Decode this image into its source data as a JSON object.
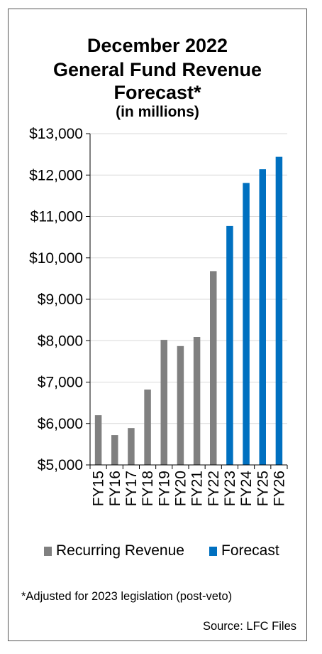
{
  "chart_data": {
    "type": "bar",
    "title": [
      "December 2022",
      "General Fund Revenue",
      "Forecast*"
    ],
    "subtitle": "(in millions)",
    "categories": [
      "FY15",
      "FY16",
      "FY17",
      "FY18",
      "FY19",
      "FY20",
      "FY21",
      "FY22",
      "FY23",
      "FY24",
      "FY25",
      "FY26"
    ],
    "series": [
      {
        "name": "Recurring Revenue",
        "color": "#808080",
        "values": [
          6200,
          5720,
          5890,
          6820,
          8020,
          7870,
          8090,
          9680,
          null,
          null,
          null,
          null
        ]
      },
      {
        "name": "Forecast",
        "color": "#0070c0",
        "values": [
          null,
          null,
          null,
          null,
          null,
          null,
          null,
          null,
          10770,
          11810,
          12140,
          12440
        ]
      }
    ],
    "ylim": [
      5000,
      13000
    ],
    "yticks": [
      5000,
      6000,
      7000,
      8000,
      9000,
      10000,
      11000,
      12000,
      13000
    ],
    "ytick_labels": [
      "$5,000",
      "$6,000",
      "$7,000",
      "$8,000",
      "$9,000",
      "$10,000",
      "$11,000",
      "$12,000",
      "$13,000"
    ],
    "grid": true,
    "legend_position": "bottom"
  },
  "footnote": "*Adjusted for 2023 legislation (post-veto)",
  "source": "Source: LFC Files"
}
